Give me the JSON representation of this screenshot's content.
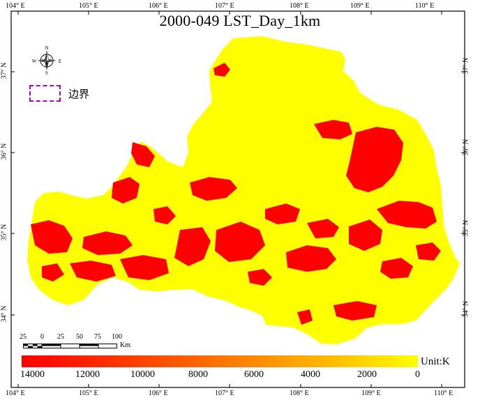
{
  "title": "2000-049 LST_Day_1km",
  "longitude_labels": [
    "104° E",
    "105° E",
    "106° E",
    "107° E",
    "108° E",
    "109° E",
    "110° E"
  ],
  "latitude_labels": [
    "37° N",
    "36° N",
    "35° N",
    "34° N"
  ],
  "north_arrow": {
    "icon": "compass-rose-icon",
    "letters": {
      "n": "N",
      "s": "S",
      "e": "E",
      "w": "W"
    }
  },
  "legend": {
    "symbol": "dashed-boundary-icon",
    "label": "边界",
    "color": "#b000c0"
  },
  "scale_bar": {
    "labels": [
      "25",
      "0",
      "25",
      "50",
      "75",
      "100"
    ],
    "unit": "Km"
  },
  "color_bar": {
    "unit": "Unit:K",
    "ticks": [
      "14000",
      "12000",
      "10000",
      "8000",
      "6000",
      "4000",
      "2000",
      "0"
    ],
    "colors": {
      "high": "#ff0000",
      "low": "#ffff00"
    }
  },
  "colors": {
    "surface": "#ffff00",
    "hot": "#ff0000"
  }
}
